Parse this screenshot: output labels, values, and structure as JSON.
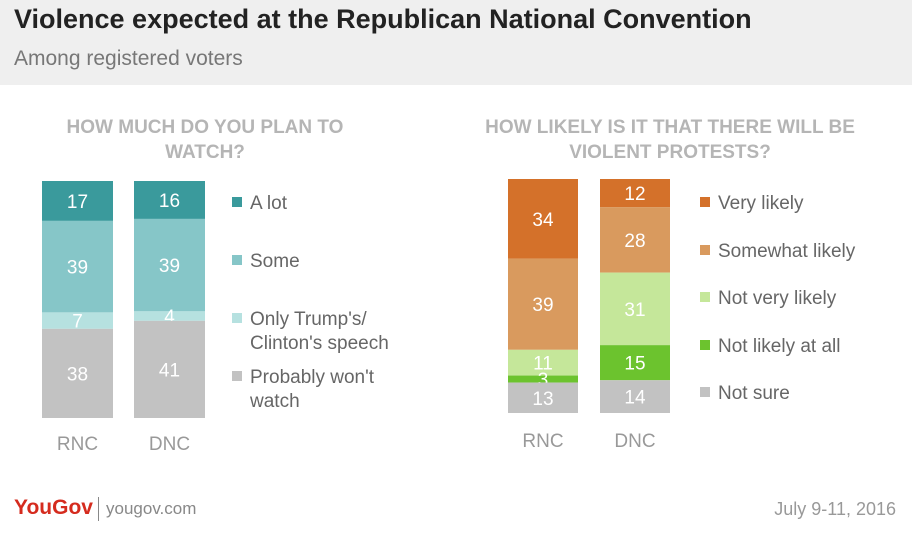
{
  "header": {
    "title": "Violence expected at the Republican National Convention",
    "subtitle": "Among registered voters"
  },
  "footer": {
    "logo": "YouGov",
    "site": "yougov.com",
    "date": "July 9-11, 2016"
  },
  "chart_data": [
    {
      "type": "bar",
      "stacked": true,
      "title": "HOW MUCH DO YOU PLAN TO WATCH?",
      "categories": [
        "RNC",
        "DNC"
      ],
      "series": [
        {
          "name": "A lot",
          "values": [
            17,
            16
          ],
          "color": "#3a9a9c",
          "text_color": "#ffffff"
        },
        {
          "name": "Some",
          "values": [
            39,
            39
          ],
          "color": "#86c6c8",
          "text_color": "#ffffff"
        },
        {
          "name": "Only Trump's/ Clinton's speech",
          "values": [
            7,
            4
          ],
          "color": "#b6e1e0",
          "text_color": "#ffffff"
        },
        {
          "name": "Probably won't watch",
          "values": [
            38,
            41
          ],
          "color": "#c2c2c2",
          "text_color": "#ffffff"
        }
      ],
      "legend": "right"
    },
    {
      "type": "bar",
      "stacked": true,
      "title": "HOW LIKELY IS IT THAT THERE WILL BE VIOLENT PROTESTS?",
      "categories": [
        "RNC",
        "DNC"
      ],
      "series": [
        {
          "name": "Very likely",
          "values": [
            34,
            12
          ],
          "color": "#d4712a",
          "text_color": "#ffffff"
        },
        {
          "name": "Somewhat likely",
          "values": [
            39,
            28
          ],
          "color": "#d99a5e",
          "text_color": "#ffffff"
        },
        {
          "name": "Not very likely",
          "values": [
            11,
            31
          ],
          "color": "#c5e79a",
          "text_color": "#ffffff"
        },
        {
          "name": "Not likely at all",
          "values": [
            3,
            15
          ],
          "color": "#6cc32e",
          "text_color": "#ffffff"
        },
        {
          "name": "Not sure",
          "values": [
            13,
            14
          ],
          "color": "#c2c2c2",
          "text_color": "#ffffff"
        }
      ],
      "legend": "right"
    }
  ]
}
